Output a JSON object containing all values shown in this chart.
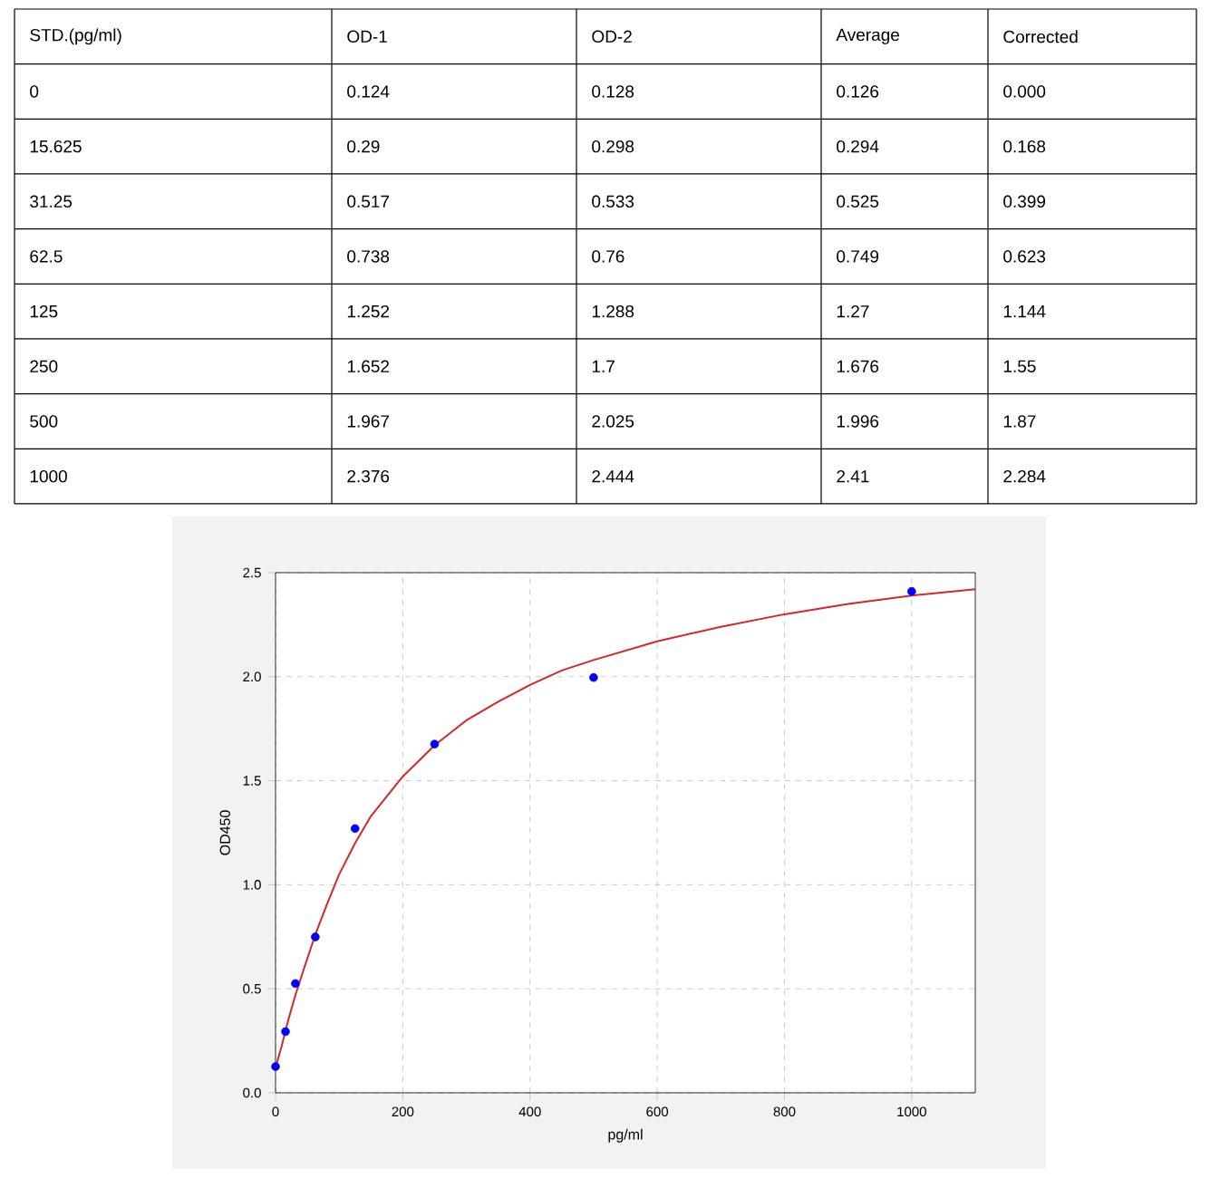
{
  "chart_data": [
    {
      "type": "other",
      "categories": [
        "STD.(pg/ml)",
        "OD-1",
        "OD-2",
        "Average",
        "Corrected"
      ],
      "y_categories": [
        "0",
        "15.625",
        "31.25",
        "62.5",
        "125",
        "250",
        "500",
        "1000"
      ],
      "cell_labels": [
        [
          "0.124",
          "0.128",
          "0.126",
          "0.000"
        ],
        [
          "0.29",
          "0.298",
          "0.294",
          "0.168"
        ],
        [
          "0.517",
          "0.533",
          "0.525",
          "0.399"
        ],
        [
          "0.738",
          "0.76",
          "0.749",
          "0.623"
        ],
        [
          "1.252",
          "1.288",
          "1.27",
          "1.144"
        ],
        [
          "1.652",
          "1.7",
          "1.676",
          "1.55"
        ],
        [
          "1.967",
          "2.025",
          "1.996",
          "1.87"
        ],
        [
          "2.376",
          "2.444",
          "2.41",
          "2.284"
        ]
      ]
    },
    {
      "type": "scatter",
      "xlabel": "pg/ml",
      "ylabel": "OD450",
      "xlim": [
        0,
        1100
      ],
      "ylim": [
        0,
        2.5
      ],
      "xticks": [
        0,
        200,
        400,
        600,
        800,
        1000
      ],
      "yticks": [
        {
          "value": 0,
          "label": "0.0"
        },
        {
          "value": 0.5,
          "label": "0.5"
        },
        {
          "value": 1,
          "label": "1.0"
        },
        {
          "value": 1.5,
          "label": "1.5"
        },
        {
          "value": 2,
          "label": "2.0"
        },
        {
          "value": 2.5,
          "label": "2.5"
        }
      ],
      "grid": true,
      "series": [
        {
          "type": "line",
          "color": "#d62728",
          "marker": "none",
          "x": [
            0,
            10,
            20,
            31.25,
            45,
            62.5,
            80,
            100,
            125,
            150,
            200,
            250,
            300,
            350,
            400,
            450,
            500,
            600,
            700,
            800,
            900,
            1000,
            1100
          ],
          "values": [
            0.12,
            0.23,
            0.35,
            0.47,
            0.6,
            0.76,
            0.9,
            1.05,
            1.2,
            1.33,
            1.52,
            1.67,
            1.79,
            1.88,
            1.96,
            2.03,
            2.08,
            2.17,
            2.24,
            2.3,
            2.35,
            2.39,
            2.42
          ]
        },
        {
          "type": "scatter",
          "color": "#0000ff",
          "marker": "circle",
          "x": [
            0,
            15.625,
            31.25,
            62.5,
            125,
            250,
            500,
            1000
          ],
          "values": [
            0.126,
            0.294,
            0.525,
            0.749,
            1.27,
            1.676,
            1.996,
            2.41
          ]
        }
      ]
    }
  ]
}
